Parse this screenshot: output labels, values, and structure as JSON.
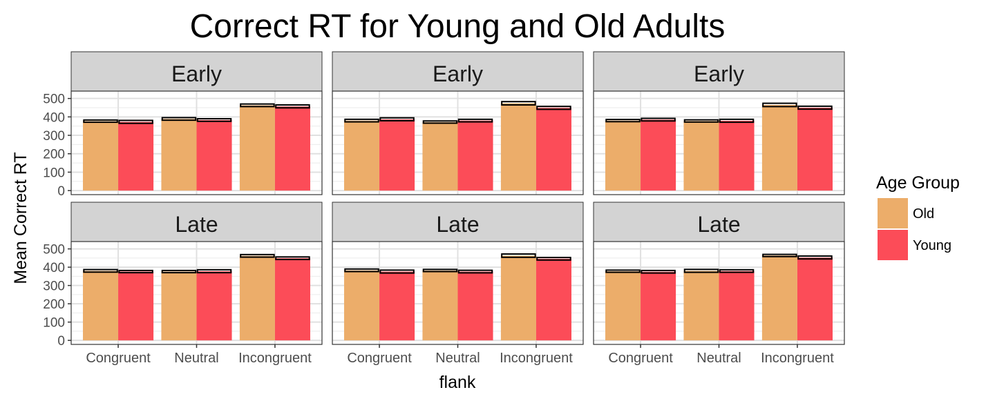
{
  "chart_data": {
    "type": "bar",
    "title": "Correct RT for Young and Old Adults",
    "xlabel": "flank",
    "ylabel": "Mean Correct RT",
    "categories": [
      "Congruent",
      "Neutral",
      "Incongruent"
    ],
    "yticks": [
      0,
      100,
      200,
      300,
      400,
      500
    ],
    "ylim": [
      -22,
      540
    ],
    "grid": true,
    "legend": {
      "title": "Age Group",
      "position": "right",
      "entries": [
        "Old",
        "Young"
      ]
    },
    "colors": {
      "Old": "#ECAD6A",
      "Young": "#FC4C58",
      "strip": "#D3D3D3",
      "errorbar": "#000000"
    },
    "panels": [
      {
        "strip": "Early",
        "series": [
          {
            "name": "Old",
            "values": [
              377,
              389,
              463
            ],
            "errors": [
              6,
              7,
              7
            ]
          },
          {
            "name": "Young",
            "values": [
              373,
              383,
              457
            ],
            "errors": [
              8,
              7,
              8
            ]
          }
        ]
      },
      {
        "strip": "Early",
        "series": [
          {
            "name": "Old",
            "values": [
              380,
              372,
              474
            ],
            "errors": [
              7,
              6,
              9
            ]
          },
          {
            "name": "Young",
            "values": [
              387,
              380,
              449
            ],
            "errors": [
              8,
              7,
              8
            ]
          }
        ]
      },
      {
        "strip": "Early",
        "series": [
          {
            "name": "Old",
            "values": [
              380,
              378,
              465
            ],
            "errors": [
              6,
              6,
              9
            ]
          },
          {
            "name": "Young",
            "values": [
              385,
              379,
              450
            ],
            "errors": [
              7,
              8,
              8
            ]
          }
        ]
      },
      {
        "strip": "Late",
        "series": [
          {
            "name": "Old",
            "values": [
              380,
              376,
              462
            ],
            "errors": [
              7,
              6,
              7
            ]
          },
          {
            "name": "Young",
            "values": [
              376,
              378,
              449
            ],
            "errors": [
              6,
              8,
              7
            ]
          }
        ]
      },
      {
        "strip": "Late",
        "series": [
          {
            "name": "Old",
            "values": [
              383,
              382,
              463
            ],
            "errors": [
              7,
              6,
              9
            ]
          },
          {
            "name": "Young",
            "values": [
              376,
              376,
              446
            ],
            "errors": [
              8,
              7,
              7
            ]
          }
        ]
      },
      {
        "strip": "Late",
        "series": [
          {
            "name": "Old",
            "values": [
              378,
              380,
              464
            ],
            "errors": [
              6,
              8,
              6
            ]
          },
          {
            "name": "Young",
            "values": [
              375,
              379,
              453
            ],
            "errors": [
              7,
              7,
              8
            ]
          }
        ]
      }
    ]
  }
}
